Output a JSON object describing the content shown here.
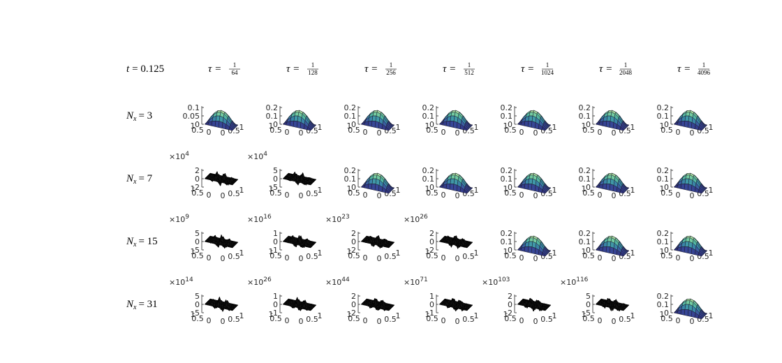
{
  "corner_label": {
    "lhs": "t",
    "rhs": "= 0.125"
  },
  "column_labels": [
    {
      "lhs": "τ =",
      "num": "1",
      "den": "64"
    },
    {
      "lhs": "τ =",
      "num": "1",
      "den": "128"
    },
    {
      "lhs": "τ =",
      "num": "1",
      "den": "256"
    },
    {
      "lhs": "τ =",
      "num": "1",
      "den": "512"
    },
    {
      "lhs": "τ =",
      "num": "1",
      "den": "1024"
    },
    {
      "lhs": "τ =",
      "num": "1",
      "den": "2048"
    },
    {
      "lhs": "τ =",
      "num": "1",
      "den": "4096"
    }
  ],
  "row_labels": [
    {
      "lhs": "N",
      "sub": "x",
      "rhs": "= 3"
    },
    {
      "lhs": "N",
      "sub": "x",
      "rhs": "= 7"
    },
    {
      "lhs": "N",
      "sub": "x",
      "rhs": "= 15"
    },
    {
      "lhs": "N",
      "sub": "x",
      "rhs": "= 31"
    }
  ],
  "chart_data": [
    {
      "type": "surface",
      "zticks": [
        0,
        0.05,
        0.1
      ],
      "xticks": [
        0,
        0.5,
        1
      ],
      "yticks": [
        0,
        0.5,
        1
      ]
    },
    {
      "type": "surface",
      "zticks": [
        0,
        0.1,
        0.2
      ],
      "xticks": [
        0,
        0.5,
        1
      ],
      "yticks": [
        0,
        0.5,
        1
      ]
    },
    {
      "type": "surface",
      "zticks": [
        0,
        0.1,
        0.2
      ],
      "xticks": [
        0,
        0.5,
        1
      ],
      "yticks": [
        0,
        0.5,
        1
      ]
    },
    {
      "type": "surface",
      "zticks": [
        0,
        0.1,
        0.2
      ],
      "xticks": [
        0,
        0.5,
        1
      ],
      "yticks": [
        0,
        0.5,
        1
      ]
    },
    {
      "type": "surface",
      "zticks": [
        0,
        0.1,
        0.2
      ],
      "xticks": [
        0,
        0.5,
        1
      ],
      "yticks": [
        0,
        0.5,
        1
      ]
    },
    {
      "type": "surface",
      "zticks": [
        0,
        0.1,
        0.2
      ],
      "xticks": [
        0,
        0.5,
        1
      ],
      "yticks": [
        0,
        0.5,
        1
      ]
    },
    {
      "type": "surface",
      "zticks": [
        0,
        0.1,
        0.2
      ],
      "xticks": [
        0,
        0.5,
        1
      ],
      "yticks": [
        0,
        0.5,
        1
      ]
    },
    {
      "type": "surface",
      "zticks": [
        -2,
        0,
        2
      ],
      "multiplier": {
        "base": "×10",
        "power": "4"
      },
      "xticks": [
        0,
        0.5,
        1
      ],
      "yticks": [
        0,
        0.5,
        1
      ]
    },
    {
      "type": "surface",
      "zticks": [
        -5,
        0,
        5
      ],
      "multiplier": {
        "base": "×10",
        "power": "4"
      },
      "xticks": [
        0,
        0.5,
        1
      ],
      "yticks": [
        0,
        0.5,
        1
      ]
    },
    {
      "type": "surface",
      "zticks": [
        0,
        0.1,
        0.2
      ],
      "xticks": [
        0,
        0.5,
        1
      ],
      "yticks": [
        0,
        0.5,
        1
      ]
    },
    {
      "type": "surface",
      "zticks": [
        0,
        0.1,
        0.2
      ],
      "xticks": [
        0,
        0.5,
        1
      ],
      "yticks": [
        0,
        0.5,
        1
      ]
    },
    {
      "type": "surface",
      "zticks": [
        0,
        0.1,
        0.2
      ],
      "xticks": [
        0,
        0.5,
        1
      ],
      "yticks": [
        0,
        0.5,
        1
      ]
    },
    {
      "type": "surface",
      "zticks": [
        0,
        0.1,
        0.2
      ],
      "xticks": [
        0,
        0.5,
        1
      ],
      "yticks": [
        0,
        0.5,
        1
      ]
    },
    {
      "type": "surface",
      "zticks": [
        0,
        0.1,
        0.2
      ],
      "xticks": [
        0,
        0.5,
        1
      ],
      "yticks": [
        0,
        0.5,
        1
      ]
    },
    {
      "type": "surface",
      "zticks": [
        -5,
        0,
        5
      ],
      "multiplier": {
        "base": "×10",
        "power": "9"
      },
      "xticks": [
        0,
        0.5,
        1
      ],
      "yticks": [
        0,
        0.5,
        1
      ]
    },
    {
      "type": "surface",
      "zticks": [
        -1,
        0,
        1
      ],
      "multiplier": {
        "base": "×10",
        "power": "16"
      },
      "xticks": [
        0,
        0.5,
        1
      ],
      "yticks": [
        0,
        0.5,
        1
      ]
    },
    {
      "type": "surface",
      "zticks": [
        -2,
        0,
        2
      ],
      "multiplier": {
        "base": "×10",
        "power": "23"
      },
      "xticks": [
        0,
        0.5,
        1
      ],
      "yticks": [
        0,
        0.5,
        1
      ]
    },
    {
      "type": "surface",
      "zticks": [
        -2,
        0,
        2
      ],
      "multiplier": {
        "base": "×10",
        "power": "26"
      },
      "xticks": [
        0,
        0.5,
        1
      ],
      "yticks": [
        0,
        0.5,
        1
      ]
    },
    {
      "type": "surface",
      "zticks": [
        0,
        0.1,
        0.2
      ],
      "xticks": [
        0,
        0.5,
        1
      ],
      "yticks": [
        0,
        0.5,
        1
      ]
    },
    {
      "type": "surface",
      "zticks": [
        0,
        0.1,
        0.2
      ],
      "xticks": [
        0,
        0.5,
        1
      ],
      "yticks": [
        0,
        0.5,
        1
      ]
    },
    {
      "type": "surface",
      "zticks": [
        0,
        0.1,
        0.2
      ],
      "xticks": [
        0,
        0.5,
        1
      ],
      "yticks": [
        0,
        0.5,
        1
      ]
    },
    {
      "type": "surface",
      "zticks": [
        -5,
        0,
        5
      ],
      "multiplier": {
        "base": "×10",
        "power": "14"
      },
      "xticks": [
        0,
        0.5,
        1
      ],
      "yticks": [
        0,
        0.5,
        1
      ]
    },
    {
      "type": "surface",
      "zticks": [
        -1,
        0,
        1
      ],
      "multiplier": {
        "base": "×10",
        "power": "26"
      },
      "xticks": [
        0,
        0.5,
        1
      ],
      "yticks": [
        0,
        0.5,
        1
      ]
    },
    {
      "type": "surface",
      "zticks": [
        -2,
        0,
        2
      ],
      "multiplier": {
        "base": "×10",
        "power": "44"
      },
      "xticks": [
        0,
        0.5,
        1
      ],
      "yticks": [
        0,
        0.5,
        1
      ]
    },
    {
      "type": "surface",
      "zticks": [
        -1,
        0,
        1
      ],
      "multiplier": {
        "base": "×10",
        "power": "71"
      },
      "xticks": [
        0,
        0.5,
        1
      ],
      "yticks": [
        0,
        0.5,
        1
      ]
    },
    {
      "type": "surface",
      "zticks": [
        -2,
        0,
        2
      ],
      "multiplier": {
        "base": "×10",
        "power": "103"
      },
      "xticks": [
        0,
        0.5,
        1
      ],
      "yticks": [
        0,
        0.5,
        1
      ]
    },
    {
      "type": "surface",
      "zticks": [
        -5,
        0,
        5
      ],
      "multiplier": {
        "base": "×10",
        "power": "116"
      },
      "xticks": [
        0,
        0.5,
        1
      ],
      "yticks": [
        0,
        0.5,
        1
      ]
    },
    {
      "type": "surface",
      "zticks": [
        0,
        0.1,
        0.2
      ],
      "xticks": [
        0,
        0.5,
        1
      ],
      "yticks": [
        0,
        0.5,
        1
      ]
    }
  ]
}
